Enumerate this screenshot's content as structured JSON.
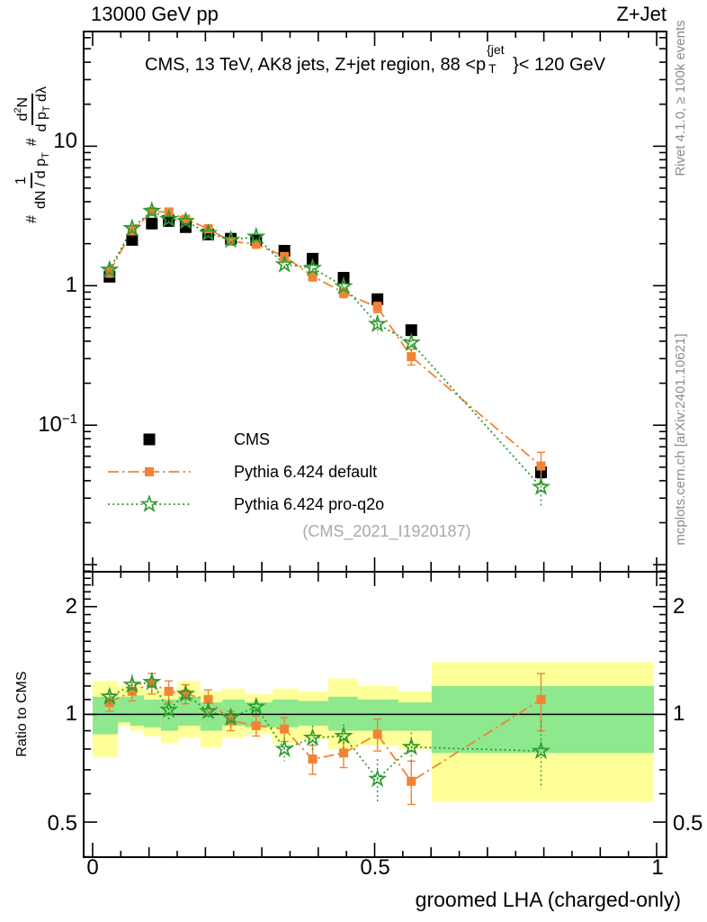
{
  "header": {
    "left": "13000 GeV pp",
    "right": "Z+Jet"
  },
  "panel_title": {
    "pre": "CMS, 13 TeV, AK8 jets, Z+jet region, 88 <p",
    "sup": "{jet",
    "sub": "T",
    "post": "}< 120 GeV"
  },
  "ylabel_parts": {
    "hash1": "#",
    "f1_num": "1",
    "f1_den": "dN / d p",
    "f1_den_sub": "T",
    "hash2": "#",
    "f2_num_a": "d",
    "f2_num_sup": "2",
    "f2_num_b": "N",
    "f2_den_a": "d p",
    "f2_den_sub": "T",
    "f2_den_b": " dλ"
  },
  "ratio_ylabel": "Ratio to CMS",
  "xlabel": "groomed LHA (charged-only)",
  "watermark": "(CMS_2021_I1920187)",
  "side_notes": {
    "top": "Rivet 4.1.0, ≥ 100k events",
    "bottom": "mcplots.cern.ch [arXiv:2401.10621]"
  },
  "legend": [
    {
      "label": "CMS"
    },
    {
      "label": "Pythia 6.424 default"
    },
    {
      "label": "Pythia 6.424 pro-q2o"
    }
  ],
  "axes": {
    "main_y": [
      {
        "text": "10"
      },
      {
        "text": "1"
      },
      {
        "text": "10",
        "exp": "−1"
      }
    ],
    "ratio_left": [
      {
        "text": "2"
      },
      {
        "text": "1"
      },
      {
        "text": "0.5"
      }
    ],
    "ratio_right": [
      {
        "text": "2"
      },
      {
        "text": "1"
      },
      {
        "text": "0.5"
      }
    ],
    "x": [
      {
        "text": "0"
      },
      {
        "text": "0.5"
      },
      {
        "text": "1"
      }
    ]
  },
  "colors": {
    "cms": "#000000",
    "pythia_default": "#f08434",
    "pythia_proq2o": "#2e9b2e",
    "band_yellow": "#ffff99",
    "band_green": "#8ee88e",
    "note_gray": "#8c8c8c",
    "watermark_gray": "#a9a9a9"
  },
  "chart_data": {
    "type": "line",
    "title": "CMS, 13 TeV, AK8 jets, Z+jet region, 88 <pT{jet}< 120 GeV",
    "xlabel": "groomed LHA (charged-only)",
    "ylabel": "# 1/(dN/dpT) # d2N/(dpT dλ)",
    "ratio_ylabel": "Ratio to CMS",
    "legend_position": "middle-left",
    "grid": false,
    "yscale": "log",
    "xlim": [
      -0.0159,
      1.0175
    ],
    "main_ylim": [
      0.0089,
      66.4
    ],
    "ratio_ylim": [
      0.399,
      2.503
    ],
    "xticks_major": [
      0,
      0.5,
      1
    ],
    "xticks_minor_step": 0.05,
    "main_yticks_major": [
      10,
      1,
      0.1,
      0.01
    ],
    "ratio_yticks_major": [
      2,
      1,
      0.5
    ],
    "x": [
      0.03,
      0.07,
      0.105,
      0.135,
      0.165,
      0.205,
      0.245,
      0.29,
      0.34,
      0.39,
      0.445,
      0.505,
      0.565,
      0.795
    ],
    "series": [
      {
        "name": "CMS",
        "marker": "filled-square",
        "line": "none",
        "color": "#000000",
        "values": [
          1.16,
          2.13,
          2.79,
          2.91,
          2.63,
          2.33,
          2.17,
          2.13,
          1.78,
          1.56,
          1.14,
          0.8,
          0.48,
          0.046
        ],
        "yerr": [
          0.04,
          0.07,
          0.09,
          0.09,
          0.08,
          0.07,
          0.07,
          0.07,
          0.06,
          0.05,
          0.04,
          0.03,
          0.02,
          0.004
        ]
      },
      {
        "name": "Pythia 6.424 default",
        "marker": "filled-square",
        "line": "dash-dot",
        "color": "#f08434",
        "values": [
          1.25,
          2.47,
          3.4,
          3.38,
          3.0,
          2.56,
          2.08,
          1.98,
          1.62,
          1.17,
          0.89,
          0.7,
          0.31,
          0.051
        ],
        "yerr": [
          0.1,
          0.15,
          0.2,
          0.2,
          0.17,
          0.14,
          0.12,
          0.11,
          0.1,
          0.09,
          0.07,
          0.06,
          0.04,
          0.013
        ]
      },
      {
        "name": "Pythia 6.424 pro-q2o",
        "marker": "open-star",
        "line": "dotted",
        "color": "#2e9b2e",
        "values": [
          1.3,
          2.58,
          3.43,
          3.0,
          2.9,
          2.38,
          2.13,
          2.24,
          1.42,
          1.34,
          0.99,
          0.53,
          0.39,
          0.036
        ],
        "yerr": [
          0.1,
          0.16,
          0.2,
          0.18,
          0.16,
          0.13,
          0.12,
          0.12,
          0.09,
          0.09,
          0.07,
          0.08,
          0.05,
          0.01
        ]
      }
    ],
    "ratio": {
      "baseline": 1,
      "series": [
        {
          "name": "Pythia 6.424 default",
          "marker": "filled-square",
          "line": "dash-dot",
          "color": "#f08434",
          "values": [
            1.08,
            1.16,
            1.22,
            1.16,
            1.14,
            1.1,
            0.96,
            0.93,
            0.91,
            0.75,
            0.78,
            0.88,
            0.65,
            1.1
          ],
          "err": [
            0.06,
            0.07,
            0.08,
            0.08,
            0.07,
            0.07,
            0.06,
            0.06,
            0.07,
            0.07,
            0.07,
            0.09,
            0.09,
            0.2
          ]
        },
        {
          "name": "Pythia 6.424 pro-q2o",
          "marker": "open-star",
          "line": "dotted",
          "color": "#2e9b2e",
          "values": [
            1.12,
            1.21,
            1.23,
            1.03,
            1.14,
            1.02,
            0.98,
            1.05,
            0.8,
            0.86,
            0.87,
            0.66,
            0.81,
            0.79
          ],
          "err": [
            0.06,
            0.08,
            0.08,
            0.07,
            0.07,
            0.06,
            0.06,
            0.06,
            0.06,
            0.07,
            0.07,
            0.09,
            0.08,
            0.17
          ]
        }
      ],
      "bands": {
        "edges": [
          0,
          0.045,
          0.067,
          0.091,
          0.121,
          0.152,
          0.191,
          0.23,
          0.27,
          0.319,
          0.365,
          0.418,
          0.47,
          0.542,
          0.601,
          0.995
        ],
        "yellow": [
          [
            0.76,
            1.24
          ],
          [
            0.93,
            1.2
          ],
          [
            0.9,
            1.2
          ],
          [
            0.87,
            1.17
          ],
          [
            0.83,
            1.17
          ],
          [
            0.86,
            1.24
          ],
          [
            0.81,
            1.16
          ],
          [
            0.86,
            1.18
          ],
          [
            0.88,
            1.14
          ],
          [
            0.83,
            1.18
          ],
          [
            0.85,
            1.16
          ],
          [
            0.8,
            1.26
          ],
          [
            0.82,
            1.2
          ],
          [
            0.8,
            1.16
          ],
          [
            0.57,
            1.4
          ]
        ],
        "green": [
          [
            0.88,
            1.12
          ],
          [
            0.95,
            1.12
          ],
          [
            0.93,
            1.13
          ],
          [
            0.92,
            1.1
          ],
          [
            0.9,
            1.1
          ],
          [
            0.93,
            1.12
          ],
          [
            0.9,
            1.08
          ],
          [
            0.93,
            1.1
          ],
          [
            0.92,
            1.08
          ],
          [
            0.92,
            1.1
          ],
          [
            0.93,
            1.09
          ],
          [
            0.9,
            1.12
          ],
          [
            0.9,
            1.1
          ],
          [
            0.9,
            1.08
          ],
          [
            0.78,
            1.2
          ]
        ]
      }
    }
  }
}
